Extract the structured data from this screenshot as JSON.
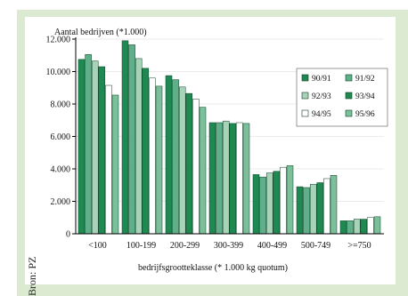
{
  "source_credit": "Bron: PZ",
  "colors": {
    "panel_bg": "#dcead2",
    "plot_bg": "#ffffff",
    "axis": "#000000",
    "grid": "#d8d8d8"
  },
  "chart_data": {
    "type": "bar",
    "title": "Aantal bedrijven (*1.000)",
    "xlabel": "bedrijfsgrootteklasse (* 1.000 kg quotum)",
    "ylabel": "",
    "ylim": [
      0,
      12000
    ],
    "yticks": [
      0,
      2000,
      4000,
      6000,
      8000,
      10000,
      12000
    ],
    "ytick_labels": [
      "0",
      "2.000",
      "4.000",
      "6.000",
      "8.000",
      "10.000",
      "12.000"
    ],
    "grid": "horizontal",
    "legend_position": "top-right",
    "categories": [
      "<100",
      "100-199",
      "200-299",
      "300-399",
      "400-499",
      "500-749",
      ">=750"
    ],
    "series": [
      {
        "name": "90/91",
        "color": "#1e8a52",
        "values": [
          10750,
          11900,
          9750,
          6850,
          3650,
          2900,
          800
        ]
      },
      {
        "name": "91/92",
        "color": "#5fb08a",
        "values": [
          11050,
          11650,
          9500,
          6850,
          3500,
          2850,
          800
        ]
      },
      {
        "name": "92/93",
        "color": "#a7d3b9",
        "values": [
          10650,
          10800,
          9050,
          6950,
          3750,
          3050,
          900
        ]
      },
      {
        "name": "93/94",
        "color": "#1e8a52",
        "values": [
          10300,
          10200,
          8650,
          6800,
          3850,
          3150,
          900
        ]
      },
      {
        "name": "94/95",
        "color": "#ffffff",
        "values": [
          9150,
          9600,
          8300,
          6850,
          4100,
          3400,
          1000
        ]
      },
      {
        "name": "95/96",
        "color": "#7cc09b",
        "values": [
          8550,
          9100,
          7800,
          6800,
          4200,
          3600,
          1050
        ]
      }
    ]
  }
}
